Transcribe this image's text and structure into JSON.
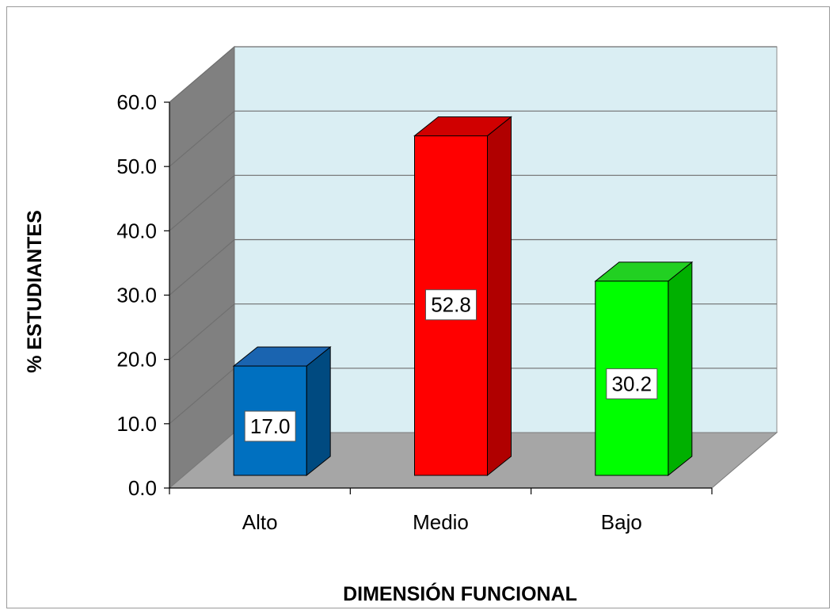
{
  "chart_data": {
    "type": "bar",
    "three_d": true,
    "categories": [
      "Alto",
      "Medio",
      "Bajo"
    ],
    "values": [
      17.0,
      52.8,
      30.2
    ],
    "data_labels": [
      "17.0",
      "52.8",
      "30.2"
    ],
    "colors": [
      "#0070C0",
      "#FF0000",
      "#00FF00"
    ],
    "side_colors": [
      "#004A80",
      "#B00000",
      "#00B000"
    ],
    "top_colors": [
      "#1A64B0",
      "#D00000",
      "#22D022"
    ],
    "xlabel": "DIMENSIÓN FUNCIONAL",
    "ylabel": "% ESTUDIANTES",
    "ylim": [
      0,
      60
    ],
    "yticks": [
      "0.0",
      "10.0",
      "20.0",
      "30.0",
      "40.0",
      "50.0",
      "60.0"
    ],
    "grid": true,
    "legend": "none",
    "wall_color": "#DAEEF3",
    "side_wall_color": "#808080",
    "floor_color": "#A6A6A6"
  }
}
